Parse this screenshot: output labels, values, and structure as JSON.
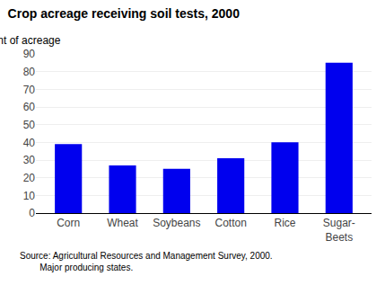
{
  "chart_data": {
    "type": "bar",
    "title": "Crop acreage receiving soil tests, 2000",
    "ylabel": "Percent of acreage",
    "categories": [
      "Corn",
      "Wheat",
      "Soybeans",
      "Cotton",
      "Rice",
      "Sugar-\nBeets"
    ],
    "values": [
      39,
      27,
      25,
      31,
      40,
      85
    ],
    "color": "#0000EE",
    "ylim": [
      0,
      90
    ],
    "yticks": [
      0,
      10,
      20,
      30,
      40,
      50,
      60,
      70,
      80,
      90
    ],
    "grid": true,
    "source": "Source: Agricultural Resources and Management Survey, 2000.\n        Major producing states."
  }
}
